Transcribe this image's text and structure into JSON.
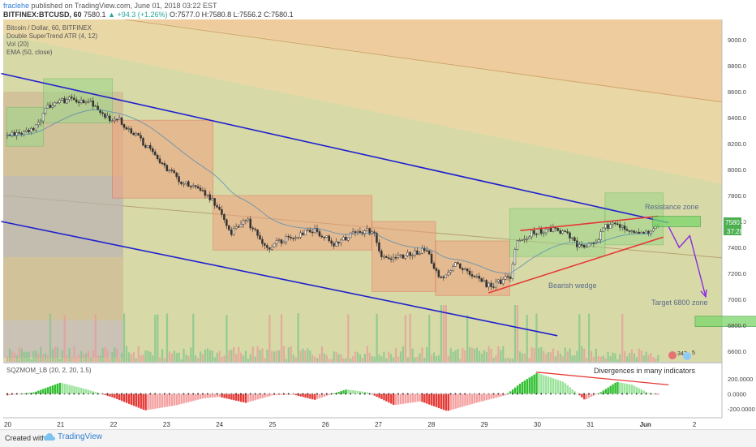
{
  "header": {
    "author": "fraclehe",
    "published_text": "published on TradingView.com, June 01, 2018 03:22 EST",
    "symbol": "BITFINEX:BTCUSD, 60",
    "last": "7580.1",
    "change": "▲ +94.3 (+1.26%)",
    "ohlc": "O:7577.0 H:7580.8 L:7556.2 C:7580.1"
  },
  "legend": {
    "title": "Bitcoin / Dollar, 60, BITFINEX",
    "ind1": "Double SuperTrend ATR (4, 12)",
    "ind2": "Vol (20)",
    "ind3": "EMA (50, close)"
  },
  "annotations": {
    "resistance": "Resistance zone",
    "target": "Target 6800 zone",
    "wedge": "Bearish wedge",
    "divergence": "Divergences in many indicators"
  },
  "price_tags": {
    "last": "7580.1",
    "countdown": "37:28"
  },
  "badges": {
    "ideas": "347",
    "comments": "5"
  },
  "subpane": {
    "title": "SQZMOM_LB (20, 2, 20, 1.5)"
  },
  "footer": {
    "created": "Created with",
    "brand": "TradingView"
  },
  "colors": {
    "bull": "#4caf50",
    "bear": "#e53935",
    "channel": "#1f1fcf",
    "wedge": "#e53935",
    "arrow": "#8a2be2"
  },
  "chart_data": [
    {
      "type": "candlestick",
      "title": "Bitcoin / Dollar, 60, BITFINEX",
      "x_ticks": [
        "20",
        "21",
        "22",
        "23",
        "24",
        "25",
        "26",
        "27",
        "28",
        "29",
        "30",
        "31",
        "Jun",
        "2"
      ],
      "ylim": [
        6500,
        9200
      ],
      "y_ticks": [
        6600,
        6800,
        7000,
        7200,
        7400,
        7600,
        7800,
        8000,
        8200,
        8400,
        8600,
        8800,
        9000
      ],
      "close_path": [
        {
          "day": 20.0,
          "price": 8260
        },
        {
          "day": 20.5,
          "price": 8320
        },
        {
          "day": 20.8,
          "price": 8500
        },
        {
          "day": 21.2,
          "price": 8550
        },
        {
          "day": 21.6,
          "price": 8520
        },
        {
          "day": 21.9,
          "price": 8390
        },
        {
          "day": 22.1,
          "price": 8380
        },
        {
          "day": 22.5,
          "price": 8240
        },
        {
          "day": 22.9,
          "price": 8050
        },
        {
          "day": 23.3,
          "price": 7900
        },
        {
          "day": 23.7,
          "price": 7820
        },
        {
          "day": 23.9,
          "price": 7760
        },
        {
          "day": 24.2,
          "price": 7510
        },
        {
          "day": 24.5,
          "price": 7620
        },
        {
          "day": 24.9,
          "price": 7400
        },
        {
          "day": 25.3,
          "price": 7480
        },
        {
          "day": 25.8,
          "price": 7540
        },
        {
          "day": 26.2,
          "price": 7420
        },
        {
          "day": 26.6,
          "price": 7530
        },
        {
          "day": 26.9,
          "price": 7520
        },
        {
          "day": 27.1,
          "price": 7310
        },
        {
          "day": 27.5,
          "price": 7330
        },
        {
          "day": 27.9,
          "price": 7380
        },
        {
          "day": 28.2,
          "price": 7150
        },
        {
          "day": 28.5,
          "price": 7280
        },
        {
          "day": 28.8,
          "price": 7180
        },
        {
          "day": 29.1,
          "price": 7100
        },
        {
          "day": 29.5,
          "price": 7180
        },
        {
          "day": 29.6,
          "price": 7420
        },
        {
          "day": 29.9,
          "price": 7520
        },
        {
          "day": 30.3,
          "price": 7540
        },
        {
          "day": 30.6,
          "price": 7500
        },
        {
          "day": 30.8,
          "price": 7400
        },
        {
          "day": 31.1,
          "price": 7440
        },
        {
          "day": 31.3,
          "price": 7560
        },
        {
          "day": 31.6,
          "price": 7570
        },
        {
          "day": 31.9,
          "price": 7520
        },
        {
          "day": 32.1,
          "price": 7500
        },
        {
          "day": 32.3,
          "price": 7580
        }
      ],
      "channel_upper": [
        {
          "day": 19.9,
          "price": 8740
        },
        {
          "day": 32.5,
          "price": 7590
        }
      ],
      "channel_lower": [
        {
          "day": 19.9,
          "price": 7600
        },
        {
          "day": 30.4,
          "price": 6720
        }
      ],
      "wedge_upper": [
        {
          "day": 29.7,
          "price": 7530
        },
        {
          "day": 32.3,
          "price": 7640
        }
      ],
      "wedge_lower": [
        {
          "day": 29.1,
          "price": 7050
        },
        {
          "day": 32.4,
          "price": 7480
        }
      ],
      "resistance_zone": [
        7560,
        7640
      ],
      "target_zone": [
        6790,
        6870
      ],
      "forecast_arrow": [
        {
          "day": 32.5,
          "price": 7560
        },
        {
          "day": 32.7,
          "price": 7400
        },
        {
          "day": 32.9,
          "price": 7490
        },
        {
          "day": 33.2,
          "price": 7020
        }
      ]
    },
    {
      "type": "bar",
      "title": "SQZMOM_LB (20, 2, 20, 1.5)",
      "y_ticks": [
        200000,
        0,
        -200000
      ],
      "y_tick_labels": [
        "200.0000",
        "0.0000",
        "-200.0000"
      ],
      "momentum_path": [
        {
          "day": 20.0,
          "value": -20000
        },
        {
          "day": 20.5,
          "value": 20000
        },
        {
          "day": 21.0,
          "value": 150000
        },
        {
          "day": 21.5,
          "value": 60000
        },
        {
          "day": 22.0,
          "value": -50000
        },
        {
          "day": 22.6,
          "value": -220000
        },
        {
          "day": 23.2,
          "value": -150000
        },
        {
          "day": 23.7,
          "value": -60000
        },
        {
          "day": 24.0,
          "value": -40000
        },
        {
          "day": 24.5,
          "value": -120000
        },
        {
          "day": 25.0,
          "value": -20000
        },
        {
          "day": 25.4,
          "value": -10000
        },
        {
          "day": 25.8,
          "value": -80000
        },
        {
          "day": 26.4,
          "value": 60000
        },
        {
          "day": 26.8,
          "value": 20000
        },
        {
          "day": 27.3,
          "value": -150000
        },
        {
          "day": 27.8,
          "value": -100000
        },
        {
          "day": 28.3,
          "value": -230000
        },
        {
          "day": 28.9,
          "value": -110000
        },
        {
          "day": 29.4,
          "value": -20000
        },
        {
          "day": 29.7,
          "value": 150000
        },
        {
          "day": 30.0,
          "value": 280000
        },
        {
          "day": 30.5,
          "value": 160000
        },
        {
          "day": 30.9,
          "value": -80000
        },
        {
          "day": 31.2,
          "value": 20000
        },
        {
          "day": 31.5,
          "value": 160000
        },
        {
          "day": 31.8,
          "value": 120000
        },
        {
          "day": 32.1,
          "value": 10000
        },
        {
          "day": 32.3,
          "value": -10000
        }
      ],
      "divergence_line": [
        {
          "day": 30.0,
          "value": 290000
        },
        {
          "day": 32.5,
          "value": 120000
        }
      ]
    }
  ]
}
